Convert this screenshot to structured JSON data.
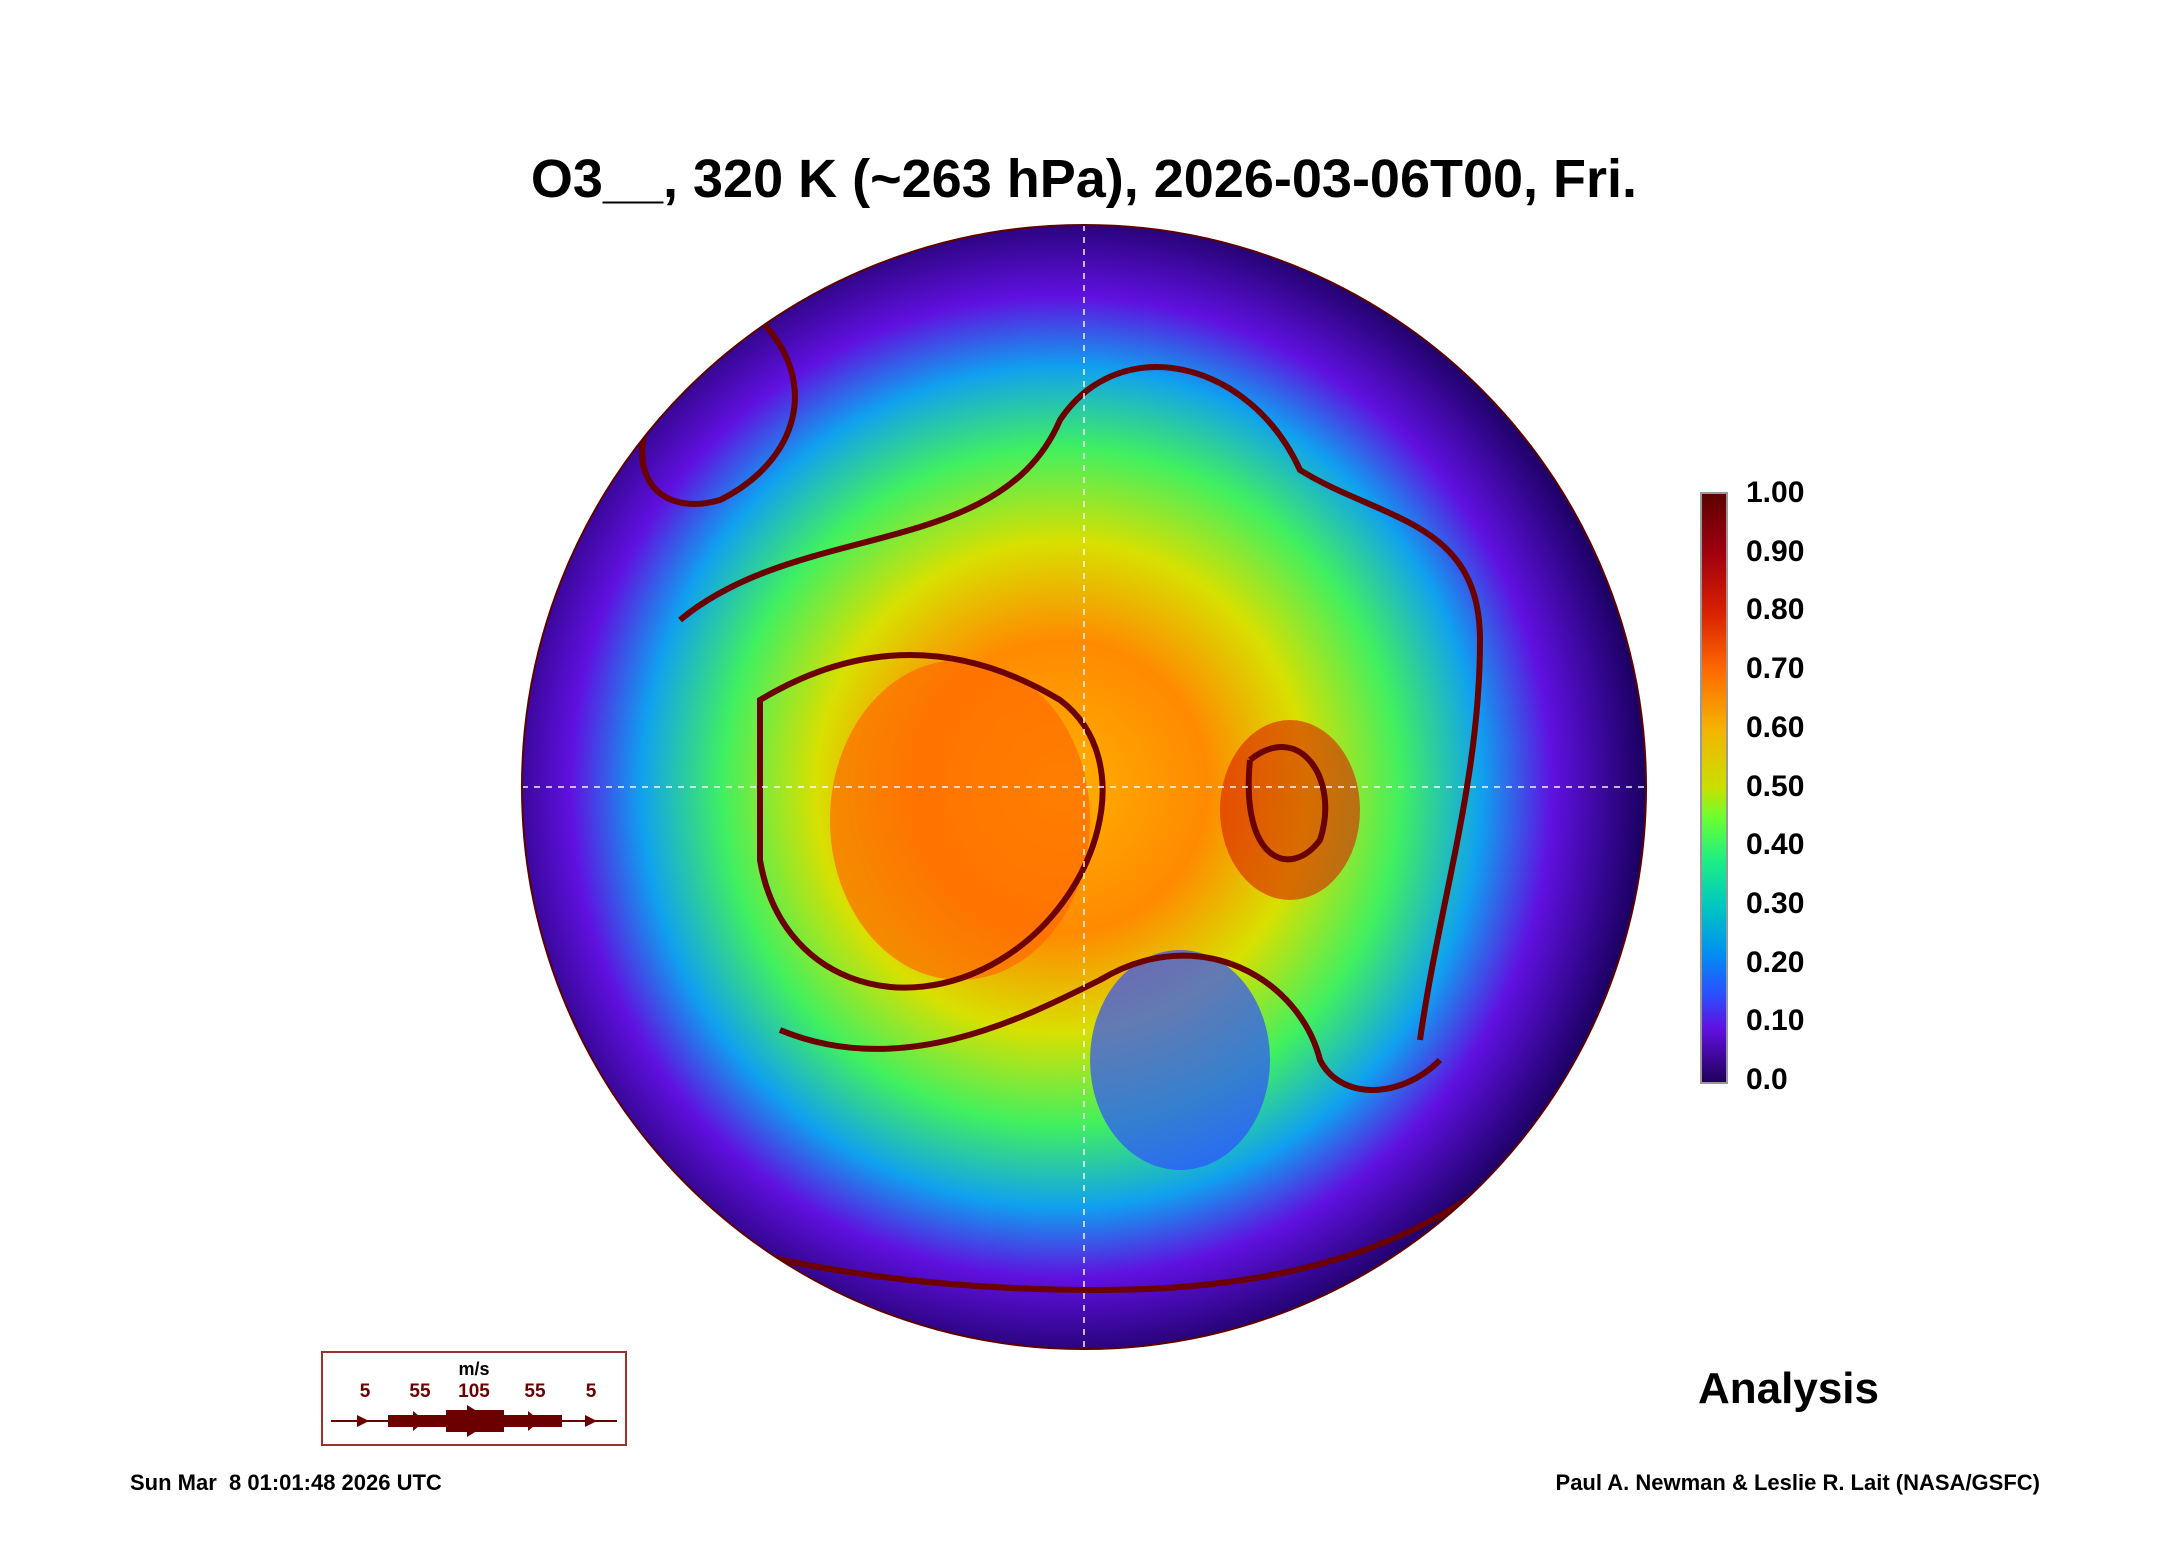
{
  "chart_data": {
    "type": "heatmap",
    "title": "O3__, 320 K (~263 hPa), 2026-03-06T00, Fri.",
    "projection": "north polar stereographic",
    "variable": "O3__",
    "colorbar": {
      "ticks": [
        "1.00",
        "0.90",
        "0.80",
        "0.70",
        "0.60",
        "0.50",
        "0.40",
        "0.30",
        "0.20",
        "0.10",
        "0.0"
      ],
      "range": [
        0.0,
        1.0
      ],
      "colormap": [
        "#20005a",
        "#6010e0",
        "#2a50ff",
        "#0090f0",
        "#00c8c0",
        "#20f080",
        "#6cff30",
        "#c8e000",
        "#f4b400",
        "#ff6a00",
        "#d82000",
        "#a00010",
        "#5c0000"
      ]
    },
    "wind_legend": {
      "unit": "m/s",
      "values": [
        "5",
        "55",
        "105",
        "55",
        "5"
      ],
      "color": "#6a0000"
    },
    "label": "Analysis"
  },
  "footer": {
    "timestamp": "Sun Mar  8 01:01:48 2026 UTC",
    "credit": "Paul A. Newman & Leslie R. Lait (NASA/GSFC)"
  }
}
